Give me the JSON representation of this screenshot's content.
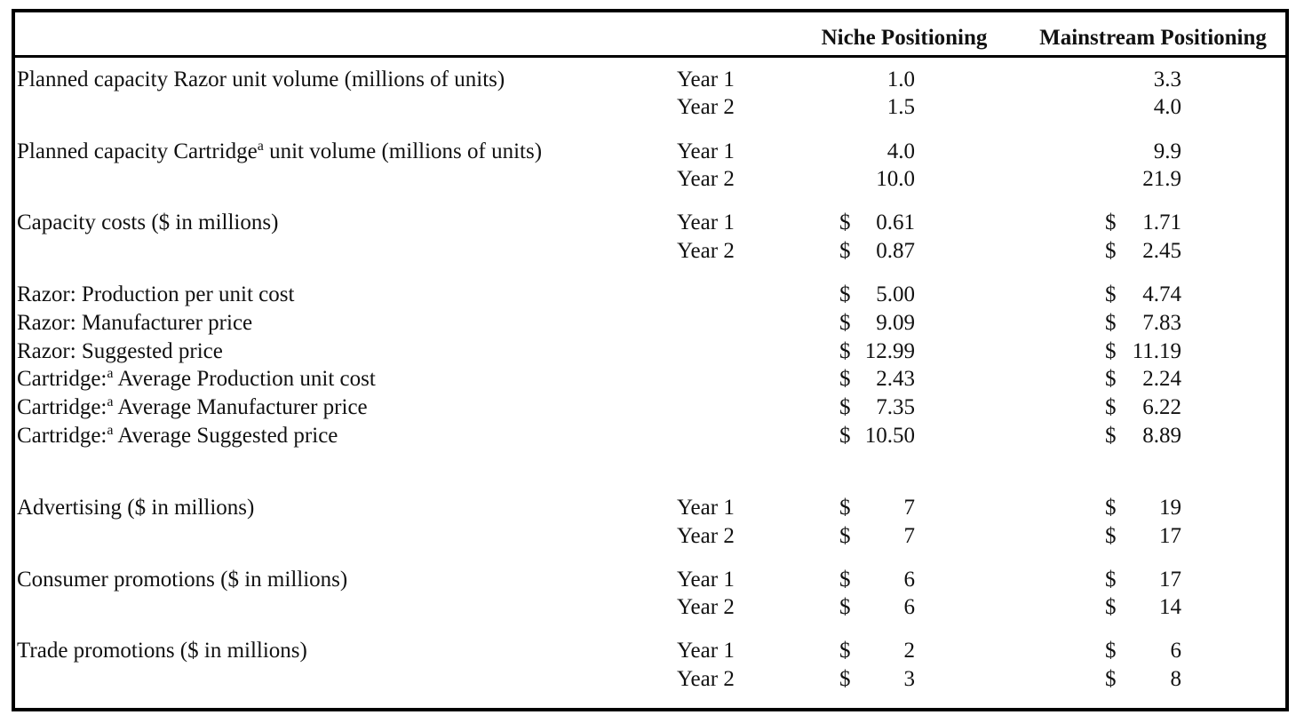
{
  "header": {
    "niche": "Niche Positioning",
    "mainstream": "Mainstream Positioning"
  },
  "groups": [
    {
      "label": "Planned capacity Razor unit volume (millions of units)",
      "lines": [
        {
          "period": "Year 1",
          "niche": {
            "amount": "1.0"
          },
          "mainstream": {
            "amount": "3.3"
          }
        },
        {
          "period": "Year 2",
          "niche": {
            "amount": "1.5"
          },
          "mainstream": {
            "amount": "4.0"
          }
        }
      ]
    },
    {
      "label": "Planned capacity Cartridge",
      "label_sup": "a",
      "label_rest": " unit volume (millions of units)",
      "lines": [
        {
          "period": "Year 1",
          "niche": {
            "amount": "4.0"
          },
          "mainstream": {
            "amount": "9.9"
          }
        },
        {
          "period": "Year 2",
          "niche": {
            "amount": "10.0"
          },
          "mainstream": {
            "amount": "21.9"
          }
        }
      ]
    },
    {
      "label": "Capacity costs ($ in millions)",
      "lines": [
        {
          "period": "Year 1",
          "niche": {
            "currency": "$",
            "amount": "0.61"
          },
          "mainstream": {
            "currency": "$",
            "amount": "1.71"
          }
        },
        {
          "period": "Year 2",
          "niche": {
            "currency": "$",
            "amount": "0.87"
          },
          "mainstream": {
            "currency": "$",
            "amount": "2.45"
          }
        }
      ]
    },
    {
      "label": "Razor: Production per unit cost",
      "lines": [
        {
          "niche": {
            "currency": "$",
            "amount": "5.00"
          },
          "mainstream": {
            "currency": "$",
            "amount": "4.74"
          }
        }
      ]
    },
    {
      "label": "Razor: Manufacturer price",
      "lines": [
        {
          "niche": {
            "currency": "$",
            "amount": "9.09"
          },
          "mainstream": {
            "currency": "$",
            "amount": "7.83"
          }
        }
      ]
    },
    {
      "label": "Razor: Suggested price",
      "lines": [
        {
          "niche": {
            "currency": "$",
            "amount": "12.99"
          },
          "mainstream": {
            "currency": "$",
            "amount": "11.19"
          }
        }
      ]
    },
    {
      "label": "Cartridge:",
      "label_sup": "a",
      "label_rest": " Average Production unit cost",
      "lines": [
        {
          "niche": {
            "currency": "$",
            "amount": "2.43"
          },
          "mainstream": {
            "currency": "$",
            "amount": "2.24"
          }
        }
      ]
    },
    {
      "label": "Cartridge:",
      "label_sup": "a",
      "label_rest": " Average Manufacturer price",
      "lines": [
        {
          "niche": {
            "currency": "$",
            "amount": "7.35"
          },
          "mainstream": {
            "currency": "$",
            "amount": "6.22"
          }
        }
      ]
    },
    {
      "label": "Cartridge:",
      "label_sup": "a",
      "label_rest": " Average Suggested price",
      "lines": [
        {
          "niche": {
            "currency": "$",
            "amount": "10.50"
          },
          "mainstream": {
            "currency": "$",
            "amount": "8.89"
          }
        }
      ]
    },
    {
      "label": "Advertising ($ in millions)",
      "lines": [
        {
          "period": "Year 1",
          "niche": {
            "currency": "$",
            "amount": "7"
          },
          "mainstream": {
            "currency": "$",
            "amount": "19"
          }
        },
        {
          "period": "Year 2",
          "niche": {
            "currency": "$",
            "amount": "7"
          },
          "mainstream": {
            "currency": "$",
            "amount": "17"
          }
        }
      ]
    },
    {
      "label": "Consumer promotions ($ in millions)",
      "lines": [
        {
          "period": "Year 1",
          "niche": {
            "currency": "$",
            "amount": "6"
          },
          "mainstream": {
            "currency": "$",
            "amount": "17"
          }
        },
        {
          "period": "Year 2",
          "niche": {
            "currency": "$",
            "amount": "6"
          },
          "mainstream": {
            "currency": "$",
            "amount": "14"
          }
        }
      ]
    },
    {
      "label": "Trade promotions ($ in millions)",
      "lines": [
        {
          "period": "Year 1",
          "niche": {
            "currency": "$",
            "amount": "2"
          },
          "mainstream": {
            "currency": "$",
            "amount": "6"
          }
        },
        {
          "period": "Year 2",
          "niche": {
            "currency": "$",
            "amount": "3"
          },
          "mainstream": {
            "currency": "$",
            "amount": "8"
          }
        }
      ]
    }
  ]
}
